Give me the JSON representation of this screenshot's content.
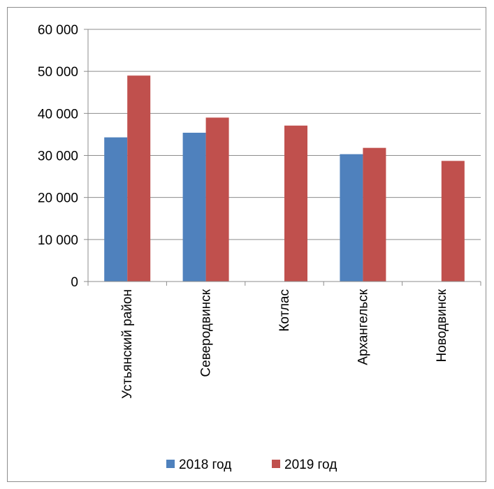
{
  "chart_data": {
    "type": "bar",
    "categories": [
      "Устьянский район",
      "Северодвинск",
      "Котлас",
      "Архангельск",
      "Новодвинск"
    ],
    "series": [
      {
        "name": "2018 год",
        "values": [
          34300,
          35400,
          null,
          30300,
          null
        ],
        "color": "#4f81bd"
      },
      {
        "name": "2019 год",
        "values": [
          49000,
          39000,
          37100,
          31800,
          28700
        ],
        "color": "#c0504d"
      }
    ],
    "ylim": [
      0,
      60000
    ],
    "yticks": [
      0,
      10000,
      20000,
      30000,
      40000,
      50000,
      60000
    ],
    "ytick_labels": [
      "0",
      "10 000",
      "20 000",
      "30 000",
      "40 000",
      "50 000",
      "60 000"
    ],
    "grid": true,
    "legend": "bottom",
    "title": "",
    "xlabel": "",
    "ylabel": ""
  }
}
